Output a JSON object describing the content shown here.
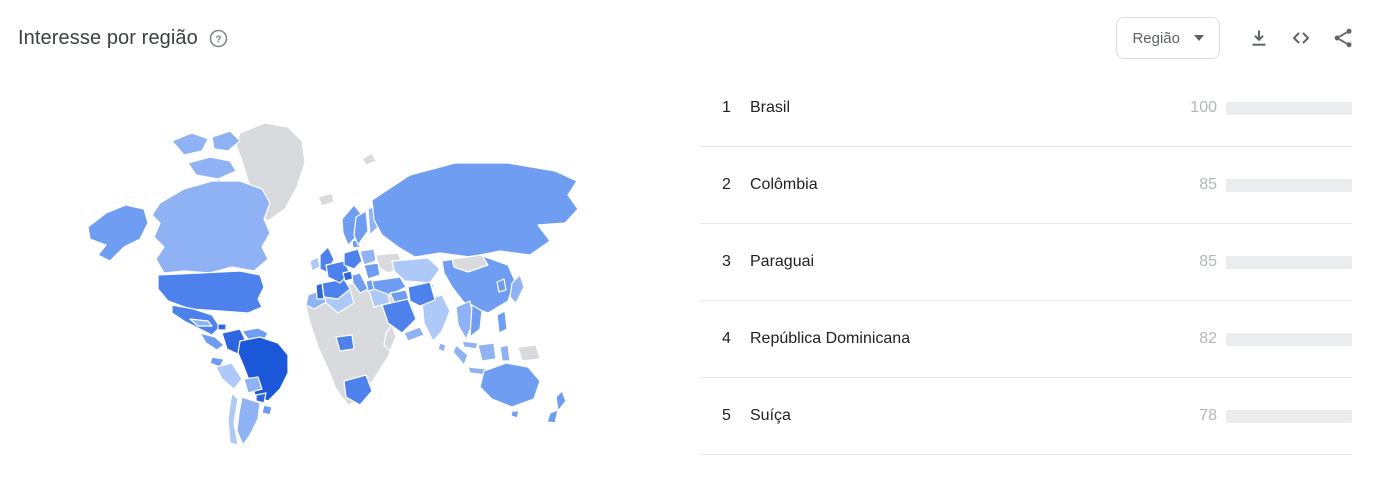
{
  "header": {
    "title": "Interesse por região",
    "help_icon": "question-mark-in-circle",
    "region_selector": {
      "label": "Região"
    },
    "icons": [
      {
        "name": "download-icon"
      },
      {
        "name": "code-embed-icon"
      },
      {
        "name": "share-icon"
      }
    ]
  },
  "chart_data": {
    "type": "bar",
    "title": "Interesse por região",
    "orientation": "horizontal",
    "ranks": [
      "1",
      "2",
      "3",
      "4",
      "5"
    ],
    "categories": [
      "Brasil",
      "Colômbia",
      "Paraguai",
      "República Dominicana",
      "Suíça"
    ],
    "values": [
      100,
      85,
      85,
      82,
      78
    ],
    "max": 100,
    "bar_color": "#4285f4",
    "track_color": "#ebeced",
    "value_label_color": "#b3b7bc",
    "grid": false,
    "legend_position": "none"
  },
  "map": {
    "type": "choropleth",
    "palette": {
      "s100": "#1b57d9",
      "s85": "#2f66df",
      "s70": "#4d82ec",
      "s55": "#6f9df1",
      "s45": "#8fb2f5",
      "s30": "#adc9f8",
      "nodata": "#d8dadd"
    },
    "region_tones": {
      "greenland": "nodata",
      "canada-archipelago-1": "s45",
      "canada-archipelago-2": "s45",
      "canada-archipelago-3": "s45",
      "canada-archipelago-4": "s45",
      "alaska": "s55",
      "canada": "s45",
      "united-states": "s70",
      "mexico": "s70",
      "central-america": "s55",
      "cuba": "s45",
      "dominican-republic": "s85",
      "venezuela": "s55",
      "colombia": "s85",
      "ecuador": "s55",
      "peru": "s30",
      "brazil": "s100",
      "bolivia": "s45",
      "paraguay": "s85",
      "argentina": "s45",
      "chile": "s30",
      "uruguay": "s55",
      "africa": "nodata",
      "morocco": "s45",
      "algeria": "s30",
      "egypt": "s30",
      "nigeria": "s70",
      "south-africa": "s70",
      "madagascar": "nodata",
      "iceland": "nodata",
      "svalbard": "nodata",
      "ireland": "s30",
      "united-kingdom": "s70",
      "portugal": "s85",
      "spain": "s70",
      "france": "s70",
      "germany": "s70",
      "denmark": "s55",
      "norway": "s55",
      "sweden": "s55",
      "finland": "s45",
      "poland": "s45",
      "ukraine": "nodata",
      "switzerland": "s85",
      "italy": "s55",
      "balkans": "s55",
      "greece": "s55",
      "turkey": "s55",
      "russia": "s55",
      "kazakhstan": "s30",
      "central-asia": "s45",
      "china": "s55",
      "mongolia": "nodata",
      "india": "s30",
      "pakistan": "s45",
      "sri-lanka": "s45",
      "iraq": "s55",
      "iran": "s70",
      "saudi-arabia": "s70",
      "yemen-oman": "s45",
      "myanmar-thailand": "s45",
      "vietnam": "s55",
      "malaysia": "s45",
      "sumatra": "s45",
      "java": "s45",
      "borneo": "s45",
      "sulawesi": "s45",
      "new-guinea": "nodata",
      "philippines": "s55",
      "south-korea": "s55",
      "japan": "s45",
      "australia": "s55",
      "tasmania": "s55",
      "new-zealand-north": "s55",
      "new-zealand-south": "s55"
    }
  }
}
